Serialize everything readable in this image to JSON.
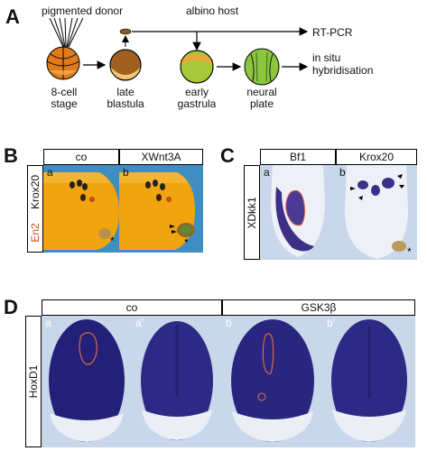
{
  "panel_A": {
    "letter": "A",
    "donor_label": "pigmented donor",
    "host_label": "albino host",
    "stages": [
      "8-cell\nstage",
      "late\nblastula",
      "early\ngastrula",
      "neural\nplate"
    ],
    "rt_pcr": "RT-PCR",
    "in_situ": "in situ\nhybridisation"
  },
  "panel_B": {
    "letter": "B",
    "columns": [
      "co",
      "XWnt3A"
    ],
    "row_labels": [
      "Krox20",
      "En2"
    ],
    "sub": [
      "a",
      "b"
    ],
    "colors": {
      "krox20": "#000000",
      "en2": "#c8541c",
      "background": "#f2a411"
    }
  },
  "panel_C": {
    "letter": "C",
    "columns": [
      "Bf1",
      "Krox20"
    ],
    "row_label": "XDkk1",
    "sub": [
      "a",
      "b"
    ]
  },
  "panel_D": {
    "letter": "D",
    "groups": [
      "co",
      "GSK3β"
    ],
    "row_label": "HoxD1",
    "sub": [
      "a",
      "a'",
      "b",
      "b'"
    ]
  }
}
